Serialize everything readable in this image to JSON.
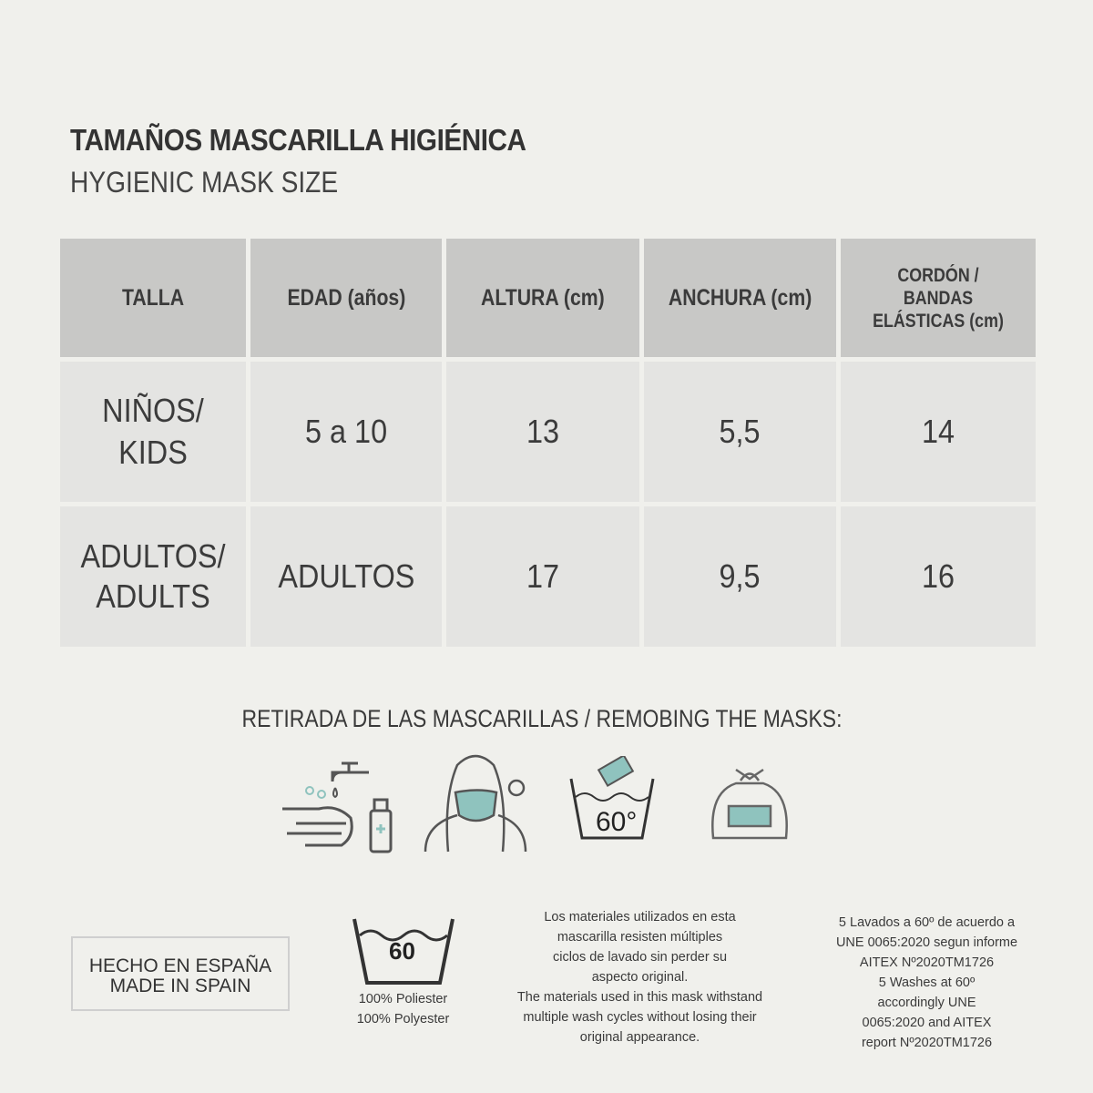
{
  "header": {
    "title": "TAMAÑOS MASCARILLA HIGIÉNICA",
    "subtitle": "HYGIENIC MASK SIZE"
  },
  "table": {
    "columns": [
      "TALLA",
      "EDAD (años)",
      "ALTURA (cm)",
      "ANCHURA (cm)",
      "CORDÓN / BANDAS ELÁSTICAS (cm)"
    ],
    "rows": [
      [
        "NIÑOS/ KIDS",
        "5 a 10",
        "13",
        "5,5",
        "14"
      ],
      [
        "ADULTOS/ ADULTS",
        "ADULTOS",
        "17",
        "9,5",
        "16"
      ]
    ]
  },
  "removal": {
    "title": "RETIRADA DE LAS MASCARILLAS / REMOBING THE MASKS:",
    "wash_temp": "60°",
    "icons": [
      "hand-washing-icon",
      "remove-mask-icon",
      "wash-60-icon",
      "sealed-bag-icon"
    ]
  },
  "footer": {
    "made_in_es": "HECHO EN ESPAÑA",
    "made_in_en": "MADE IN SPAIN",
    "wash_symbol": "60",
    "material_es": "100% Poliester",
    "material_en": "100% Polyester",
    "materials_es": "Los materiales utilizados en esta mascarilla resisten múltiples ciclos de lavado sin perder su aspecto original.",
    "materials_en": "The materials used in this mask withstand multiple wash cycles without losing their original appearance.",
    "washes_es": "5 Lavados a 60º de acuerdo a UNE 0065:2020 segun informe AITEX Nº2020TM1726",
    "washes_en": "5 Washes at 60º accordingly UNE 0065:2020 and AITEX report Nº2020TM1726"
  },
  "colors": {
    "background": "#f0f0ec",
    "header_cell": "#c8c8c6",
    "body_cell": "#e4e4e2",
    "icon_accent": "#8fc3be"
  }
}
